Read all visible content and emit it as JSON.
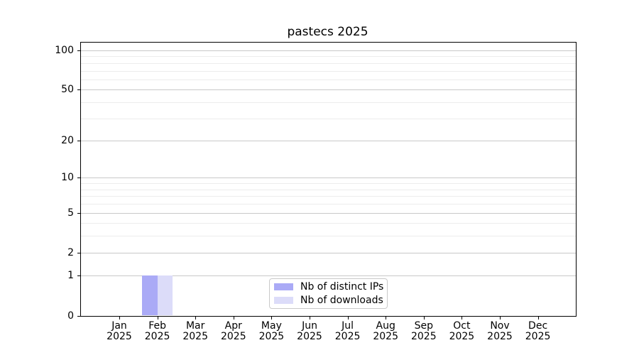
{
  "title": "pastecs 2025",
  "chart_data": {
    "type": "bar",
    "title": "pastecs 2025",
    "categories": [
      "Jan",
      "Feb",
      "Mar",
      "Apr",
      "May",
      "Jun",
      "Jul",
      "Aug",
      "Sep",
      "Oct",
      "Nov",
      "Dec"
    ],
    "x_tick_year": "2025",
    "series": [
      {
        "name": "Nb of distinct IPs",
        "color": "#aaaaf6",
        "values": [
          0,
          1,
          0,
          0,
          0,
          0,
          0,
          0,
          0,
          0,
          0,
          0
        ]
      },
      {
        "name": "Nb of downloads",
        "color": "#dcdcf9",
        "values": [
          0,
          1,
          0,
          0,
          0,
          0,
          0,
          0,
          0,
          0,
          0,
          0
        ]
      }
    ],
    "y_axis": {
      "scale": "log1p",
      "major_ticks": [
        0,
        1,
        2,
        5,
        10,
        20,
        50,
        100
      ],
      "minor_gridlines": [
        3,
        4,
        6,
        7,
        8,
        9,
        30,
        40,
        60,
        70,
        80,
        90
      ],
      "ylim": [
        0,
        115
      ]
    },
    "legend": {
      "position": "lower-center",
      "entries": [
        "Nb of distinct IPs",
        "Nb of downloads"
      ]
    },
    "grid": "horizontal-major-and-minor",
    "colors": {
      "major_grid": "#c8c8c8",
      "minor_grid": "#ececec",
      "axis": "#000000",
      "legend_border": "#c9c9c9",
      "background": "#ffffff"
    }
  }
}
